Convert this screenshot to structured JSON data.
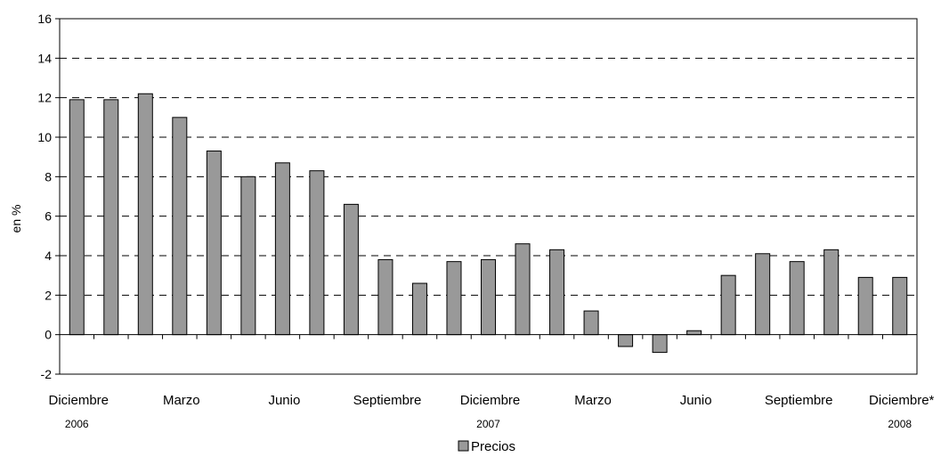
{
  "chart_data": {
    "type": "bar",
    "ylabel": "en %",
    "ylim": [
      -2,
      16
    ],
    "yticks": [
      -2,
      0,
      2,
      4,
      6,
      8,
      10,
      12,
      14,
      16
    ],
    "grid": "horizontal dashed",
    "legend_position": "bottom",
    "bar_color": "#999999",
    "x_labels": [
      {
        "text": "Diciembre",
        "index": 0
      },
      {
        "text": "Marzo",
        "index": 3
      },
      {
        "text": "Junio",
        "index": 6
      },
      {
        "text": "Septiembre",
        "index": 9
      },
      {
        "text": "Diciembre",
        "index": 12
      },
      {
        "text": "Marzo",
        "index": 15
      },
      {
        "text": "Junio",
        "index": 18
      },
      {
        "text": "Septiembre",
        "index": 21
      },
      {
        "text": "Diciembre*",
        "index": 24
      }
    ],
    "year_labels": [
      {
        "text": "2006",
        "index": 0
      },
      {
        "text": "2007",
        "index": 12
      },
      {
        "text": "2008",
        "index": 24
      }
    ],
    "series": [
      {
        "name": "Precios",
        "values": [
          11.9,
          11.9,
          12.2,
          11.0,
          9.3,
          8.0,
          8.7,
          8.3,
          6.6,
          3.8,
          2.6,
          3.7,
          3.8,
          4.6,
          4.3,
          1.2,
          -0.6,
          -0.9,
          0.2,
          3.0,
          4.1,
          3.7,
          4.3,
          2.9,
          2.9
        ]
      }
    ]
  }
}
